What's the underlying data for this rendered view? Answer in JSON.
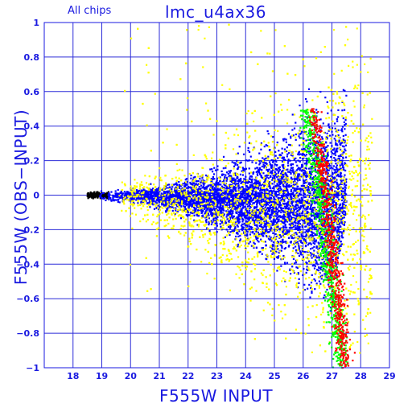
{
  "chart_data": {
    "type": "scatter",
    "title": "lmc_u4ax36",
    "subtitle": "All chips",
    "xlabel": "F555W INPUT",
    "ylabel": "F555W (OBS−INPUT)",
    "xlim": [
      17,
      29
    ],
    "ylim": [
      -1,
      1
    ],
    "xticks": [
      18,
      19,
      20,
      21,
      22,
      23,
      24,
      25,
      26,
      27,
      28,
      29
    ],
    "yticks": [
      -1,
      -0.8,
      -0.6,
      -0.4,
      -0.2,
      0,
      0.2,
      0.4,
      0.6,
      0.8,
      1
    ],
    "yticklabels": [
      "−1",
      "−0.8",
      "−0.6",
      "−0.4",
      "−0.2",
      "0",
      "0.2",
      "0.4",
      "0.6",
      "0.8",
      "1"
    ],
    "grid": true,
    "series": [
      {
        "color": "#000000",
        "x_range": [
          18.5,
          19.2
        ],
        "y_range": [
          -0.02,
          0.02
        ]
      },
      {
        "color": "#0000ff",
        "x_range": [
          18.9,
          27.5
        ],
        "y_range": [
          -1,
          0.6
        ]
      },
      {
        "color": "#ffff00",
        "x_range": [
          19.5,
          28.5
        ],
        "y_range": [
          -1,
          0.9
        ]
      },
      {
        "color": "#00ff00",
        "x_range": [
          25.5,
          27.8
        ],
        "y_range": [
          -1,
          0.5
        ]
      },
      {
        "color": "#ff0000",
        "x_range": [
          26.0,
          28.0
        ],
        "y_range": [
          -1,
          0.5
        ]
      }
    ]
  }
}
